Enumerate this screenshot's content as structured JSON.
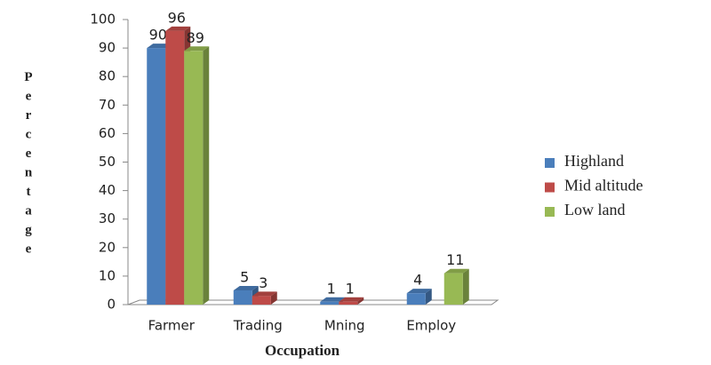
{
  "chart_data": {
    "type": "bar",
    "x_label": "Occupation",
    "y_label": "Percentage",
    "categories": [
      "Farmer",
      "Trading",
      "Mning",
      "Employ"
    ],
    "series": [
      {
        "name": "Highland",
        "color": "#4a7ebb",
        "values": [
          90,
          5,
          1,
          4
        ]
      },
      {
        "name": "Mid altitude",
        "color": "#be4b48",
        "values": [
          96,
          3,
          1,
          null
        ]
      },
      {
        "name": "Low land",
        "color": "#98b954",
        "values": [
          89,
          null,
          null,
          11
        ]
      }
    ],
    "ylim": [
      0,
      100
    ],
    "yticks": [
      0,
      10,
      20,
      30,
      40,
      50,
      60,
      70,
      80,
      90,
      100
    ],
    "legend": "right"
  }
}
